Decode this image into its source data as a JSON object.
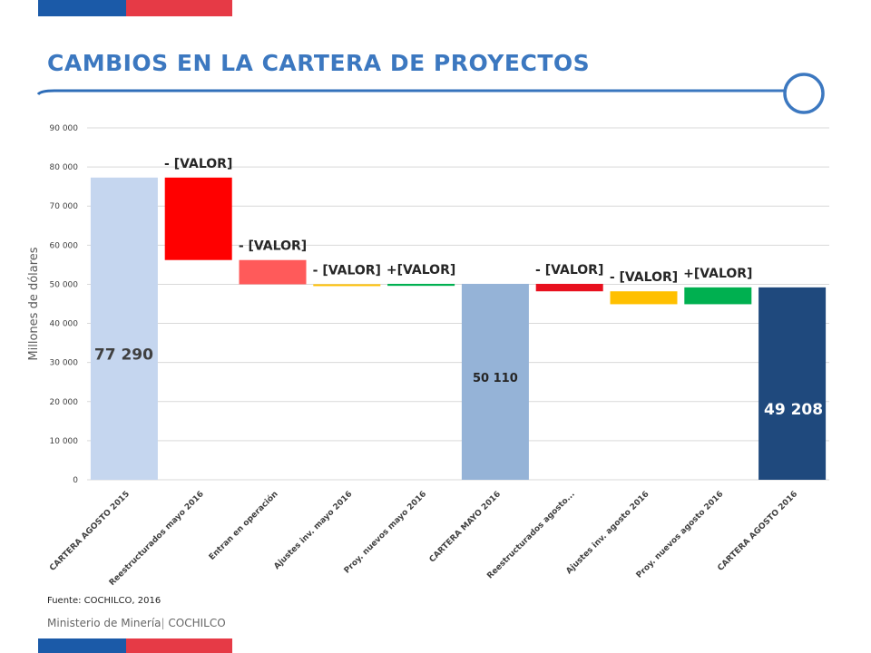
{
  "header": {
    "title": "CAMBIOS EN LA CARTERA DE PROYECTOS"
  },
  "colors": {
    "flag_blue": "#1b5aa8",
    "flag_red": "#e63a46",
    "title": "#3c78c0"
  },
  "chart_data": {
    "type": "bar",
    "subtype": "waterfall",
    "ylabel": "Millones de dólares",
    "xlabel": "",
    "ylim": [
      0,
      90000
    ],
    "yticks": [
      0,
      10000,
      20000,
      30000,
      40000,
      50000,
      60000,
      70000,
      80000,
      90000
    ],
    "ytick_labels": [
      "0",
      "10 000",
      "20 000",
      "30 000",
      "40 000",
      "50 000",
      "60 000",
      "70 000",
      "80 000",
      "90 000"
    ],
    "grid": true,
    "categories": [
      "CARTERA AGOSTO 2015",
      "Reestructurados mayo 2016",
      "Entran en operación",
      "Ajustes inv. mayo 2016",
      "Proy. nuevos mayo 2016",
      "CARTERA MAYO 2016",
      "Reestructurados agosto...",
      "Ajustes inv. agosto 2016",
      "Proy. nuevos agosto 2016",
      "CARTERA AGOSTO 2016"
    ],
    "bars": [
      {
        "base": 0,
        "top": 77290,
        "label": "77 290",
        "color": "#c5d6ef",
        "label_pos": "inside",
        "label_color": "#404040",
        "label_size": 17
      },
      {
        "base": 56200,
        "top": 77290,
        "label": "- [VALOR]",
        "color": "#ff0000",
        "label_pos": "above",
        "label_color": "#262626",
        "label_size": 14
      },
      {
        "base": 50000,
        "top": 56200,
        "label": "- [VALOR]",
        "color": "#ff5a5a",
        "label_pos": "above",
        "label_color": "#262626",
        "label_size": 14
      },
      {
        "base": 49600,
        "top": 50000,
        "label": "- [VALOR]",
        "color": "#ffc000",
        "label_pos": "above",
        "label_color": "#262626",
        "label_size": 14
      },
      {
        "base": 49600,
        "top": 50110,
        "label": "+[VALOR]",
        "color": "#00b050",
        "label_pos": "above",
        "label_color": "#262626",
        "label_size": 14
      },
      {
        "base": 0,
        "top": 50110,
        "label": "50 110",
        "color": "#95b3d7",
        "label_pos": "inside",
        "label_color": "#262626",
        "label_size": 13
      },
      {
        "base": 48200,
        "top": 50110,
        "label": "- [VALOR]",
        "color": "#e8101e",
        "label_pos": "above",
        "label_color": "#262626",
        "label_size": 14
      },
      {
        "base": 44900,
        "top": 48200,
        "label": "- [VALOR]",
        "color": "#ffc000",
        "label_pos": "above",
        "label_color": "#262626",
        "label_size": 14
      },
      {
        "base": 44900,
        "top": 49208,
        "label": "+[VALOR]",
        "color": "#00b050",
        "label_pos": "above",
        "label_color": "#262626",
        "label_size": 14
      },
      {
        "base": 0,
        "top": 49208,
        "label": "49 208",
        "color": "#1f497d",
        "label_pos": "inside",
        "label_color": "#ffffff",
        "label_size": 17
      }
    ]
  },
  "source": "Fuente: COCHILCO, 2016",
  "footer": {
    "ministry": "Ministerio  de Minería",
    "separator": "|",
    "org": "COCHILCO"
  }
}
